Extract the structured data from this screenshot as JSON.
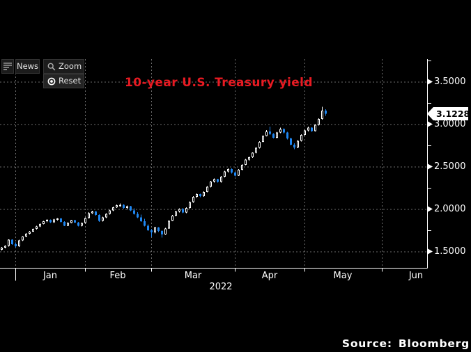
{
  "toolbar": {
    "news_label": "News",
    "zoom_label": "Zoom",
    "reset_label": "Reset"
  },
  "source": {
    "label": "Source:",
    "value": "Bloomberg"
  },
  "chart_data": {
    "type": "candlestick",
    "title": "10-year U.S. Treasury yield",
    "title_color": "#e81a22",
    "x_axis": {
      "months": [
        "Jan",
        "Feb",
        "Mar",
        "Apr",
        "May",
        "Jun"
      ],
      "year": "2022"
    },
    "y_axis": {
      "tick_labels": [
        "3.5000",
        "3.0000",
        "2.5000",
        "2.0000",
        "1.5000"
      ],
      "tick_values": [
        3.5,
        3.0,
        2.5,
        2.0,
        1.5
      ],
      "minor_tick_values": [
        3.75,
        3.25,
        2.75,
        2.25,
        1.75
      ],
      "range": [
        1.4,
        3.78
      ],
      "side": "right",
      "grid": "dashed"
    },
    "last_price": 3.1228,
    "last_price_label": "3.1228",
    "colors": {
      "up": "#ffffff",
      "down": "#1f86f0",
      "grid": "#6e6e6e",
      "axis": "#ffffff",
      "background": "#000000"
    },
    "month_start_candle_index": [
      4,
      24,
      43,
      67,
      87,
      109.2
    ],
    "candles_ohlc": [
      [
        1.52,
        1.552,
        1.512,
        1.545
      ],
      [
        1.545,
        1.572,
        1.538,
        1.565
      ],
      [
        1.565,
        1.645,
        1.558,
        1.638
      ],
      [
        1.638,
        1.642,
        1.578,
        1.588
      ],
      [
        1.588,
        1.605,
        1.548,
        1.562
      ],
      [
        1.562,
        1.638,
        1.555,
        1.63
      ],
      [
        1.63,
        1.682,
        1.622,
        1.675
      ],
      [
        1.675,
        1.718,
        1.668,
        1.71
      ],
      [
        1.71,
        1.742,
        1.7,
        1.735
      ],
      [
        1.735,
        1.772,
        1.728,
        1.765
      ],
      [
        1.765,
        1.802,
        1.758,
        1.795
      ],
      [
        1.795,
        1.832,
        1.788,
        1.825
      ],
      [
        1.825,
        1.862,
        1.818,
        1.855
      ],
      [
        1.855,
        1.882,
        1.845,
        1.872
      ],
      [
        1.872,
        1.878,
        1.838,
        1.845
      ],
      [
        1.845,
        1.885,
        1.838,
        1.878
      ],
      [
        1.878,
        1.895,
        1.865,
        1.888
      ],
      [
        1.888,
        1.892,
        1.842,
        1.85
      ],
      [
        1.85,
        1.856,
        1.798,
        1.805
      ],
      [
        1.805,
        1.845,
        1.798,
        1.838
      ],
      [
        1.838,
        1.875,
        1.83,
        1.868
      ],
      [
        1.868,
        1.874,
        1.836,
        1.842
      ],
      [
        1.842,
        1.848,
        1.796,
        1.802
      ],
      [
        1.802,
        1.842,
        1.795,
        1.835
      ],
      [
        1.835,
        1.902,
        1.828,
        1.895
      ],
      [
        1.895,
        1.962,
        1.888,
        1.952
      ],
      [
        1.952,
        1.98,
        1.942,
        1.97
      ],
      [
        1.97,
        1.975,
        1.922,
        1.93
      ],
      [
        1.93,
        1.938,
        1.85,
        1.86
      ],
      [
        1.86,
        1.908,
        1.852,
        1.9
      ],
      [
        1.9,
        1.95,
        1.892,
        1.942
      ],
      [
        1.942,
        1.99,
        1.935,
        1.982
      ],
      [
        1.982,
        2.03,
        1.975,
        2.022
      ],
      [
        2.022,
        2.052,
        2.012,
        2.045
      ],
      [
        2.045,
        2.065,
        2.03,
        2.05
      ],
      [
        2.05,
        2.058,
        2.005,
        2.012
      ],
      [
        2.012,
        2.04,
        1.995,
        2.032
      ],
      [
        2.032,
        2.038,
        1.975,
        1.982
      ],
      [
        1.982,
        2.008,
        1.935,
        1.942
      ],
      [
        1.942,
        1.965,
        1.895,
        1.902
      ],
      [
        1.902,
        1.935,
        1.848,
        1.855
      ],
      [
        1.855,
        1.885,
        1.795,
        1.802
      ],
      [
        1.802,
        1.82,
        1.74,
        1.75
      ],
      [
        1.75,
        1.765,
        1.672,
        1.725
      ],
      [
        1.725,
        1.792,
        1.715,
        1.782
      ],
      [
        1.782,
        1.788,
        1.73,
        1.74
      ],
      [
        1.74,
        1.75,
        1.662,
        1.702
      ],
      [
        1.702,
        1.78,
        1.695,
        1.772
      ],
      [
        1.772,
        1.87,
        1.765,
        1.862
      ],
      [
        1.862,
        1.93,
        1.855,
        1.922
      ],
      [
        1.922,
        1.98,
        1.915,
        1.972
      ],
      [
        1.972,
        2.01,
        1.96,
        2.002
      ],
      [
        2.002,
        2.012,
        1.95,
        1.96
      ],
      [
        1.96,
        2.02,
        1.952,
        2.012
      ],
      [
        2.012,
        2.09,
        2.005,
        2.082
      ],
      [
        2.082,
        2.15,
        2.075,
        2.142
      ],
      [
        2.142,
        2.185,
        2.13,
        2.175
      ],
      [
        2.175,
        2.18,
        2.14,
        2.15
      ],
      [
        2.15,
        2.21,
        2.142,
        2.202
      ],
      [
        2.202,
        2.27,
        2.195,
        2.262
      ],
      [
        2.262,
        2.33,
        2.255,
        2.322
      ],
      [
        2.322,
        2.36,
        2.31,
        2.352
      ],
      [
        2.352,
        2.358,
        2.31,
        2.32
      ],
      [
        2.32,
        2.39,
        2.312,
        2.382
      ],
      [
        2.382,
        2.45,
        2.375,
        2.442
      ],
      [
        2.442,
        2.48,
        2.43,
        2.472
      ],
      [
        2.472,
        2.478,
        2.42,
        2.43
      ],
      [
        2.43,
        2.44,
        2.385,
        2.395
      ],
      [
        2.395,
        2.47,
        2.388,
        2.462
      ],
      [
        2.462,
        2.53,
        2.455,
        2.522
      ],
      [
        2.522,
        2.59,
        2.515,
        2.582
      ],
      [
        2.582,
        2.62,
        2.57,
        2.61
      ],
      [
        2.61,
        2.67,
        2.602,
        2.662
      ],
      [
        2.662,
        2.73,
        2.655,
        2.722
      ],
      [
        2.722,
        2.8,
        2.715,
        2.792
      ],
      [
        2.792,
        2.87,
        2.785,
        2.862
      ],
      [
        2.862,
        2.93,
        2.855,
        2.912
      ],
      [
        2.912,
        2.97,
        2.875,
        2.885
      ],
      [
        2.885,
        2.895,
        2.83,
        2.84
      ],
      [
        2.84,
        2.91,
        2.832,
        2.902
      ],
      [
        2.902,
        2.96,
        2.895,
        2.942
      ],
      [
        2.942,
        2.95,
        2.89,
        2.9
      ],
      [
        2.9,
        2.908,
        2.82,
        2.83
      ],
      [
        2.83,
        2.84,
        2.75,
        2.76
      ],
      [
        2.76,
        2.775,
        2.705,
        2.725
      ],
      [
        2.725,
        2.81,
        2.718,
        2.802
      ],
      [
        2.802,
        2.88,
        2.795,
        2.872
      ],
      [
        2.872,
        2.935,
        2.865,
        2.925
      ],
      [
        2.925,
        2.97,
        2.915,
        2.96
      ],
      [
        2.96,
        2.965,
        2.91,
        2.92
      ],
      [
        2.92,
        3.0,
        2.912,
        2.992
      ],
      [
        2.992,
        3.07,
        2.985,
        3.062
      ],
      [
        3.062,
        3.205,
        3.055,
        3.16
      ],
      [
        3.16,
        3.175,
        3.1,
        3.1228
      ]
    ]
  }
}
